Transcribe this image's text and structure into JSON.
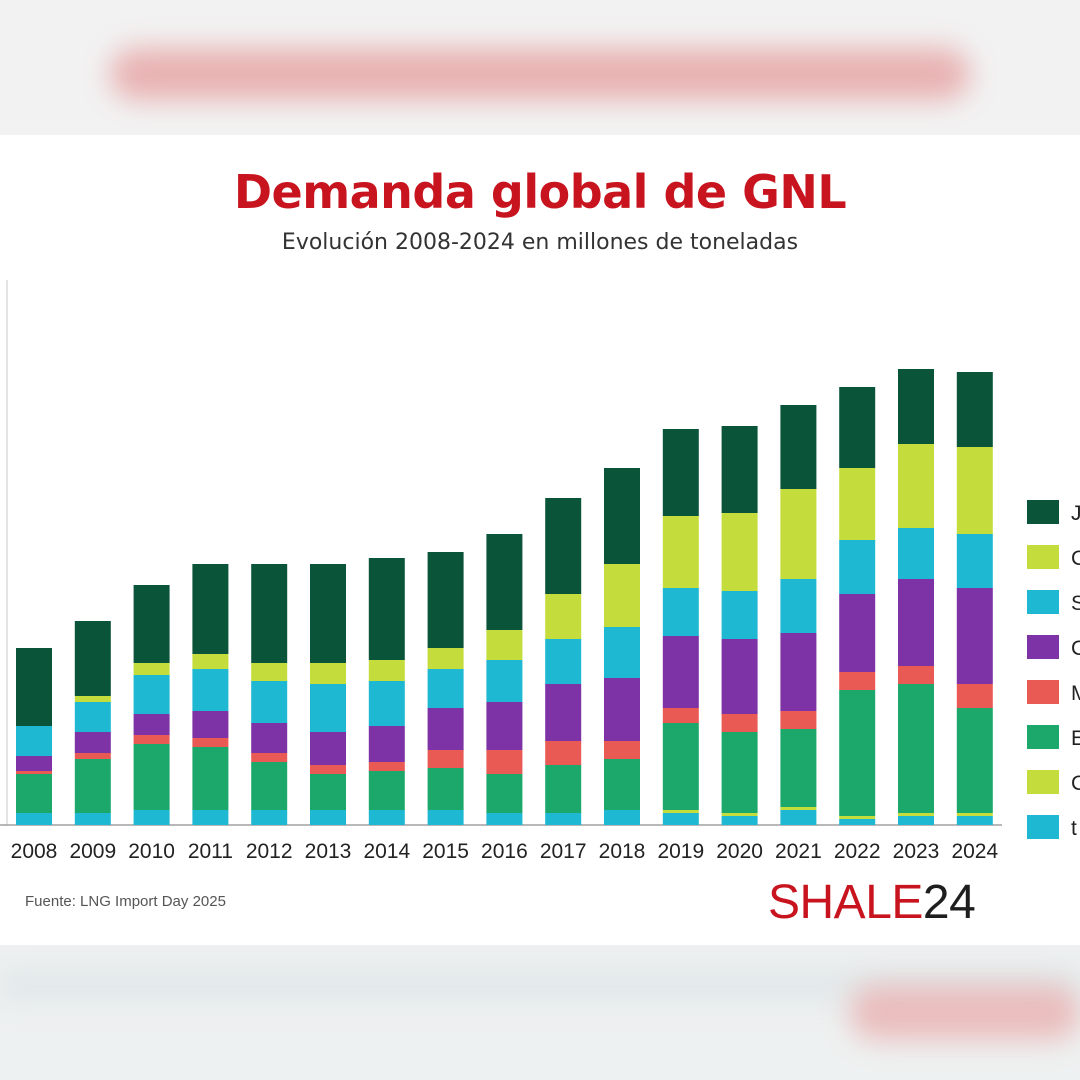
{
  "title": "Demanda global de GNL",
  "subtitle": "Evolución 2008-2024 en millones de toneladas",
  "source": "Fuente: LNG Import Day 2025",
  "brand": {
    "part1": "SHALE",
    "part2": "24"
  },
  "chart_data": {
    "type": "bar",
    "stacked": true,
    "title": "Demanda global de GNL",
    "subtitle": "Evolución 2008-2024 en millones de toneladas",
    "categories": [
      "2008",
      "2009",
      "2010",
      "2011",
      "2012",
      "2013",
      "2014",
      "2015",
      "2016",
      "2017",
      "2018",
      "2019",
      "2020",
      "2021",
      "2022",
      "2023",
      "2024"
    ],
    "legend_placement": "right",
    "legend_labels": [
      "J",
      "C",
      "S",
      "C",
      "M",
      "E",
      "C",
      "t"
    ],
    "grid": false,
    "series": [
      {
        "color": "#1eb8d2",
        "values": [
          4,
          4,
          5,
          5,
          5,
          5,
          5,
          5,
          4,
          4,
          5,
          4,
          3,
          5,
          2,
          3,
          3
        ]
      },
      {
        "color": "#c4dc3c",
        "values": [
          0,
          0,
          0,
          0,
          0,
          0,
          0,
          0,
          0,
          0,
          0,
          1,
          1,
          1,
          1,
          1,
          1
        ]
      },
      {
        "color": "#1ca86a",
        "values": [
          13,
          18,
          22,
          21,
          16,
          12,
          13,
          14,
          13,
          16,
          17,
          29,
          27,
          26,
          42,
          43,
          35
        ]
      },
      {
        "color": "#ea5a55",
        "values": [
          1,
          2,
          3,
          3,
          3,
          3,
          3,
          6,
          8,
          8,
          6,
          5,
          6,
          6,
          6,
          6,
          8
        ]
      },
      {
        "color": "#7d32a6",
        "values": [
          5,
          7,
          7,
          9,
          10,
          11,
          12,
          14,
          16,
          19,
          21,
          24,
          25,
          26,
          26,
          29,
          32
        ]
      },
      {
        "color": "#1eb8d2",
        "values": [
          10,
          10,
          13,
          14,
          14,
          16,
          15,
          13,
          14,
          15,
          17,
          16,
          16,
          18,
          18,
          17,
          18
        ]
      },
      {
        "color": "#c4dc3c",
        "values": [
          0,
          2,
          4,
          5,
          6,
          7,
          7,
          7,
          10,
          15,
          21,
          24,
          26,
          30,
          24,
          28,
          29
        ]
      },
      {
        "color": "#0a553a",
        "values": [
          26,
          25,
          26,
          30,
          33,
          33,
          34,
          32,
          32,
          32,
          32,
          29,
          29,
          28,
          27,
          25,
          25
        ]
      }
    ]
  }
}
